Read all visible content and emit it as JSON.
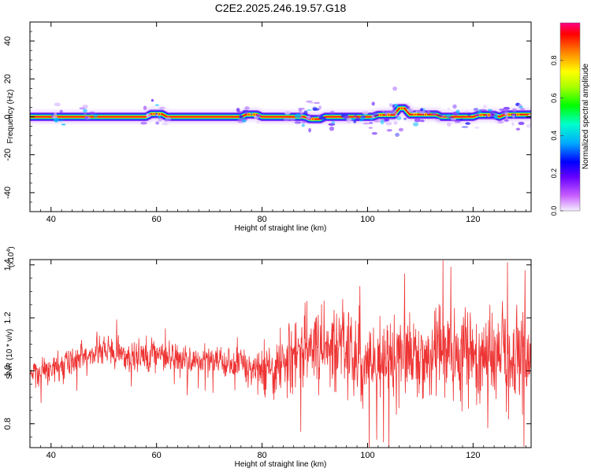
{
  "chart_data": [
    {
      "type": "heatmap",
      "title": "C2E2.2025.246.19.57.G18",
      "xlabel": "Height of straight line (km)",
      "ylabel": "Frequency (Hz)",
      "xlim": [
        36,
        131
      ],
      "ylim": [
        -50,
        50
      ],
      "xticks": [
        40,
        60,
        80,
        100,
        120
      ],
      "yticks": [
        40,
        20,
        0,
        -20,
        -40
      ],
      "colorbar": {
        "label": "Normalized spectral amplitude",
        "range": [
          0,
          1
        ],
        "ticks": [
          "0.0",
          "0.2",
          "0.4",
          "0.6",
          "0.8"
        ]
      },
      "ridge": [
        {
          "x": 36,
          "y": 0
        },
        {
          "x": 58,
          "y": 0
        },
        {
          "x": 59,
          "y": 1.5
        },
        {
          "x": 61,
          "y": 1.5
        },
        {
          "x": 62,
          "y": 0
        },
        {
          "x": 76,
          "y": 0
        },
        {
          "x": 77,
          "y": 1.2
        },
        {
          "x": 79,
          "y": 1.2
        },
        {
          "x": 80,
          "y": 0
        },
        {
          "x": 88,
          "y": 0
        },
        {
          "x": 89,
          "y": -1.2
        },
        {
          "x": 91,
          "y": -1.2
        },
        {
          "x": 92,
          "y": 0
        },
        {
          "x": 101,
          "y": 0
        },
        {
          "x": 102,
          "y": 1
        },
        {
          "x": 105,
          "y": 1
        },
        {
          "x": 106,
          "y": 4.5
        },
        {
          "x": 107,
          "y": 4.5
        },
        {
          "x": 108,
          "y": 1.2
        },
        {
          "x": 113,
          "y": 1.2
        },
        {
          "x": 114,
          "y": 0
        },
        {
          "x": 120,
          "y": 0
        },
        {
          "x": 121,
          "y": 1
        },
        {
          "x": 124,
          "y": 1
        },
        {
          "x": 125,
          "y": 0
        },
        {
          "x": 126,
          "y": 1.2
        },
        {
          "x": 131,
          "y": 1.2
        }
      ]
    },
    {
      "type": "line",
      "title": "",
      "xlabel": "Height of straight line (km)",
      "ylabel": "SNR (10 * v/v)",
      "scale_label": "(x10",
      "scale_exponent": "4",
      "scale_suffix": ")",
      "xlim": [
        36,
        131
      ],
      "ylim": [
        0.71,
        1.42
      ],
      "xticks": [
        40,
        60,
        80,
        100,
        120
      ],
      "yticks": [
        "0.8",
        "1.0",
        "1.2",
        "1.4"
      ],
      "series": [
        {
          "name": "SNR",
          "color": "#ee3333",
          "anchors": [
            {
              "x": 36,
              "y": 1.0
            },
            {
              "x": 40,
              "y": 1.0
            },
            {
              "x": 45,
              "y": 1.05
            },
            {
              "x": 50,
              "y": 1.08
            },
            {
              "x": 55,
              "y": 1.05
            },
            {
              "x": 60,
              "y": 1.07
            },
            {
              "x": 65,
              "y": 1.04
            },
            {
              "x": 70,
              "y": 1.04
            },
            {
              "x": 75,
              "y": 1.02
            },
            {
              "x": 80,
              "y": 1.0
            },
            {
              "x": 85,
              "y": 1.06
            },
            {
              "x": 90,
              "y": 1.1
            },
            {
              "x": 95,
              "y": 1.07
            },
            {
              "x": 100,
              "y": 1.04
            },
            {
              "x": 105,
              "y": 1.06
            },
            {
              "x": 110,
              "y": 1.06
            },
            {
              "x": 115,
              "y": 1.08
            },
            {
              "x": 120,
              "y": 1.05
            },
            {
              "x": 125,
              "y": 1.05
            },
            {
              "x": 131,
              "y": 1.06
            }
          ],
          "noise_amplitude": [
            {
              "x": 36,
              "a": 0.05
            },
            {
              "x": 78,
              "a": 0.06
            },
            {
              "x": 86,
              "a": 0.12
            },
            {
              "x": 100,
              "a": 0.14
            },
            {
              "x": 131,
              "a": 0.16
            }
          ],
          "extremes": [
            {
              "x": 87.3,
              "y": 0.77
            },
            {
              "x": 98.5,
              "y": 1.32
            },
            {
              "x": 103,
              "y": 0.73
            },
            {
              "x": 126.5,
              "y": 1.41
            },
            {
              "x": 129.6,
              "y": 0.71
            },
            {
              "x": 129.8,
              "y": 1.38
            }
          ],
          "n_points": 1400
        }
      ]
    }
  ],
  "colors": {
    "axis": "#000000",
    "background": "#ffffff",
    "line": "#ee3333"
  }
}
